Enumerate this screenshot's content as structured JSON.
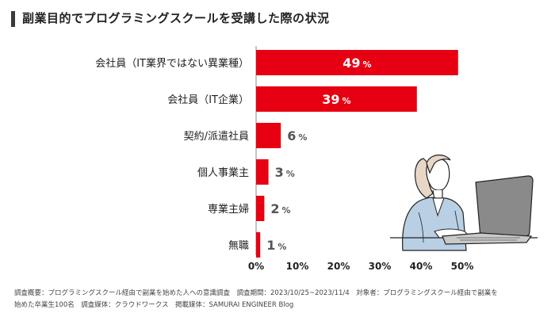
{
  "title": "副業目的でプログラミングスクールを受講した際の状況",
  "colors": {
    "bar": "#e60012",
    "value_inside": "#ffffff",
    "value_outside": "#555555",
    "axis": "#888888"
  },
  "chart_data": {
    "type": "bar",
    "orientation": "horizontal",
    "categories": [
      "会社員（IT業界ではない異業種）",
      "会社員（IT企業）",
      "契約/派遣社員",
      "個人事業主",
      "専業主婦",
      "無職"
    ],
    "values": [
      49,
      39,
      6,
      3,
      2,
      1
    ],
    "value_suffix": "%",
    "xlim": [
      0,
      50
    ],
    "ticks": [
      "0%",
      "10%",
      "20%",
      "30%",
      "40%",
      "50%"
    ],
    "tick_values": [
      0,
      10,
      20,
      30,
      40,
      50
    ],
    "grid": false,
    "legend": "none"
  },
  "footer": {
    "line1": "調査概要：プログラミングスクール経由で副業を始めた人への意識調査　調査期間：2023/10/25~2023/11/4　対象者：プログラミングスクール経由で副業を",
    "line2": "始めた卒業生100名　調査媒体：クラウドワークス　掲載媒体：SAMURAI ENGINEER Blog"
  }
}
